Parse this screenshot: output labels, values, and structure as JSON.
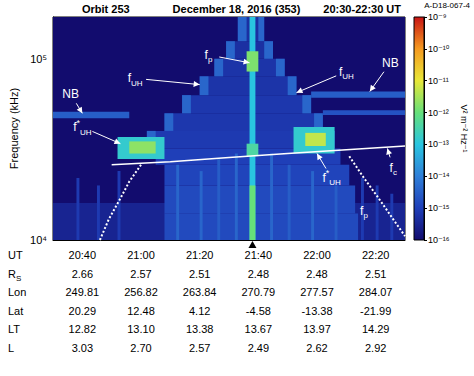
{
  "chart_data": {
    "type": "spectrogram",
    "title": [
      "Orbit 253",
      "December 18, 2016 (353)",
      "20:30-22:30 UT"
    ],
    "id_label": "A-D18-067-4",
    "xlabel": "UT",
    "ylabel": "Frequency (kHz)",
    "xlim": [
      1230,
      1350
    ],
    "xticks": [
      {
        "value": 1240,
        "label": "20:40"
      },
      {
        "value": 1260,
        "label": "21:00"
      },
      {
        "value": 1280,
        "label": "21:20"
      },
      {
        "value": 1300,
        "label": "21:40"
      },
      {
        "value": 1320,
        "label": "22:00"
      },
      {
        "value": 1340,
        "label": "22:20"
      }
    ],
    "ylim": [
      10000,
      170000
    ],
    "yticks": [
      {
        "value": 10000,
        "label": "10⁴"
      },
      {
        "value": 100000,
        "label": "10⁵"
      }
    ],
    "log": "y",
    "grid": false,
    "colorbar": {
      "label": "V² m⁻² Hz⁻¹",
      "range": [
        1e-16,
        1e-09
      ],
      "ticks": [
        {
          "value": 1e-16,
          "label": "10⁻¹⁶"
        },
        {
          "value": 1e-15,
          "label": "10⁻¹⁵"
        },
        {
          "value": 1e-14,
          "label": "10⁻¹⁴"
        },
        {
          "value": 1e-13,
          "label": "10⁻¹³"
        },
        {
          "value": 1e-12,
          "label": "10⁻¹²"
        },
        {
          "value": 1e-11,
          "label": "10⁻¹¹"
        },
        {
          "value": 1e-10,
          "label": "10⁻¹⁰"
        },
        {
          "value": 1e-09,
          "label": "10⁻⁹"
        }
      ]
    },
    "background": 1e-16,
    "cells": [
      [
        1230,
        1350,
        10000,
        16000,
        3e-16
      ],
      [
        1238,
        1239,
        10000,
        22000,
        8e-16
      ],
      [
        1245,
        1246,
        10000,
        20000,
        8e-16
      ],
      [
        1252,
        1253,
        10000,
        24000,
        8e-16
      ],
      [
        1335,
        1336,
        10000,
        22000,
        8e-16
      ],
      [
        1340,
        1341,
        10000,
        20000,
        8e-16
      ],
      [
        1345,
        1346,
        10000,
        18000,
        8e-16
      ],
      [
        1268,
        1334,
        10000,
        14000,
        1.5e-15
      ],
      [
        1268,
        1333,
        14000,
        20000,
        1.5e-15
      ],
      [
        1268,
        1331,
        20000,
        26000,
        1.2e-15
      ],
      [
        1265,
        1328,
        26000,
        32000,
        1e-15
      ],
      [
        1272,
        1273,
        10000,
        26000,
        4e-15
      ],
      [
        1280,
        1281,
        10000,
        24000,
        4e-15
      ],
      [
        1286,
        1287,
        10000,
        28000,
        3e-15
      ],
      [
        1292,
        1293,
        10000,
        30000,
        4e-15
      ],
      [
        1304,
        1305,
        10000,
        30000,
        4e-15
      ],
      [
        1310,
        1311,
        10000,
        26000,
        3e-15
      ],
      [
        1318,
        1319,
        10000,
        24000,
        4e-15
      ],
      [
        1326,
        1327,
        10000,
        20000,
        3e-15
      ],
      [
        1262,
        1326,
        32000,
        40000,
        8e-16
      ],
      [
        1268,
        1322,
        40000,
        50000,
        7e-16
      ],
      [
        1274,
        1318,
        50000,
        63000,
        7e-16
      ],
      [
        1280,
        1313,
        63000,
        80000,
        6e-16
      ],
      [
        1285,
        1309,
        80000,
        100000,
        6e-16
      ],
      [
        1289,
        1305,
        100000,
        125000,
        5e-16
      ],
      [
        1293,
        1302,
        125000,
        170000,
        5e-16
      ],
      [
        1262,
        1265,
        32000,
        40000,
        4e-15
      ],
      [
        1268,
        1271,
        40000,
        50000,
        4e-15
      ],
      [
        1274,
        1277,
        50000,
        63000,
        4e-15
      ],
      [
        1280,
        1283,
        63000,
        80000,
        4e-15
      ],
      [
        1285,
        1288,
        80000,
        100000,
        4e-15
      ],
      [
        1289,
        1292,
        100000,
        125000,
        4e-15
      ],
      [
        1293,
        1296,
        125000,
        170000,
        4e-15
      ],
      [
        1323,
        1326,
        32000,
        40000,
        4e-15
      ],
      [
        1319,
        1322,
        40000,
        50000,
        4e-15
      ],
      [
        1315,
        1318,
        50000,
        63000,
        4e-15
      ],
      [
        1310,
        1313,
        63000,
        80000,
        4e-15
      ],
      [
        1306,
        1309,
        80000,
        100000,
        4e-15
      ],
      [
        1302,
        1305,
        100000,
        125000,
        4e-15
      ],
      [
        1300,
        1302,
        125000,
        170000,
        4e-15
      ],
      [
        1230,
        1256,
        47000,
        51000,
        3e-15
      ],
      [
        1318,
        1350,
        61000,
        66000,
        3e-15
      ],
      [
        1322,
        1350,
        49000,
        52000,
        2e-15
      ],
      [
        1252,
        1268,
        28000,
        37000,
        1.5e-13
      ],
      [
        1256,
        1265,
        30000,
        35000,
        2e-12
      ],
      [
        1312,
        1326,
        30000,
        42000,
        1.5e-13
      ],
      [
        1316,
        1323,
        33000,
        39000,
        5e-12
      ],
      [
        1297,
        1299,
        10000,
        170000,
        1e-13
      ],
      [
        1297,
        1299,
        10000,
        20000,
        1e-12
      ],
      [
        1296,
        1300,
        85000,
        110000,
        1.5e-12
      ],
      [
        1296,
        1300,
        29000,
        34000,
        4e-13
      ]
    ],
    "series": [
      {
        "type": "line",
        "color": "#ffffff",
        "line_style": "solid",
        "x": [
          1250,
          1270,
          1290,
          1310,
          1330,
          1350
        ],
        "values": [
          26000,
          27000,
          28500,
          30000,
          31500,
          33000
        ]
      },
      {
        "type": "line",
        "color": "#ffffff",
        "line_style": "dotted",
        "x": [
          1246,
          1249,
          1253,
          1256,
          1260
        ],
        "values": [
          10000,
          13000,
          17000,
          21000,
          26000
        ]
      },
      {
        "type": "line",
        "color": "#ffffff",
        "line_style": "dotted",
        "x": [
          1331,
          1336,
          1341,
          1346,
          1350
        ],
        "values": [
          29000,
          22000,
          17000,
          13000,
          10500
        ]
      }
    ],
    "annotations": [
      {
        "text": "f",
        "sub": "p",
        "at": [
          1283,
          105000
        ],
        "to": [
          1297,
          95000
        ]
      },
      {
        "text": "f",
        "sub": "UH",
        "at": [
          1258,
          78000
        ],
        "to": [
          1280,
          72000
        ]
      },
      {
        "text": "f",
        "sub": "UH",
        "at": [
          1330,
          85000
        ],
        "to": [
          1313,
          65000
        ]
      },
      {
        "text": "f",
        "sup": "*",
        "sub": "UH",
        "at": [
          1240,
          42000
        ],
        "to": [
          1253,
          34000
        ]
      },
      {
        "text": "f",
        "sup": "*",
        "sub": "UH",
        "at": [
          1325,
          22000
        ],
        "to": [
          1320,
          30000
        ]
      },
      {
        "text": "NB",
        "at": [
          1236,
          64000
        ],
        "to": [
          1240,
          50000
        ]
      },
      {
        "text": "NB",
        "at": [
          1345,
          95000
        ],
        "to": [
          1338,
          66000
        ]
      },
      {
        "text": "f",
        "sub": "c",
        "at": [
          1346,
          25000
        ],
        "to": [
          1344,
          32000
        ]
      },
      {
        "text": "f",
        "sub": "p",
        "at": [
          1336,
          14500
        ]
      }
    ],
    "marker_x": 1298,
    "ephemeris": {
      "rows": [
        {
          "text": "R",
          "sub": "S",
          "values": [
            "2.66",
            "2.57",
            "2.51",
            "2.48",
            "2.48",
            "2.51"
          ]
        },
        {
          "text": "Lon",
          "values": [
            "249.81",
            "256.82",
            "263.84",
            "270.79",
            "277.57",
            "284.07"
          ]
        },
        {
          "text": "Lat",
          "values": [
            "20.29",
            "12.48",
            "4.12",
            "-4.58",
            "-13.38",
            "-21.99"
          ]
        },
        {
          "text": "LT",
          "values": [
            "12.82",
            "13.10",
            "13.38",
            "13.67",
            "13.97",
            "14.29"
          ]
        },
        {
          "text": "L",
          "values": [
            "3.03",
            "2.70",
            "2.57",
            "2.49",
            "2.62",
            "2.92"
          ]
        }
      ]
    }
  }
}
